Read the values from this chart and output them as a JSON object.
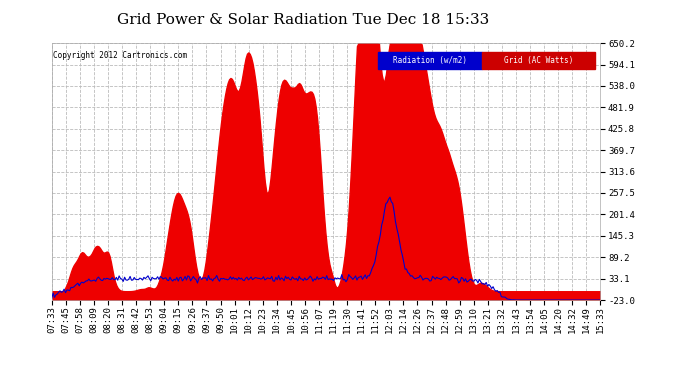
{
  "title": "Grid Power & Solar Radiation Tue Dec 18 15:33",
  "copyright": "Copyright 2012 Cartronics.com",
  "yticks": [
    650.2,
    594.1,
    538.0,
    481.9,
    425.8,
    369.7,
    313.6,
    257.5,
    201.4,
    145.3,
    89.2,
    33.1,
    -23.0
  ],
  "ymin": -23.0,
  "ymax": 650.2,
  "xtick_labels": [
    "07:33",
    "07:45",
    "07:58",
    "08:09",
    "08:20",
    "08:31",
    "08:42",
    "08:53",
    "09:04",
    "09:15",
    "09:26",
    "09:37",
    "09:50",
    "10:01",
    "10:12",
    "10:23",
    "10:34",
    "10:45",
    "10:56",
    "11:07",
    "11:19",
    "11:30",
    "11:41",
    "11:52",
    "12:03",
    "12:14",
    "12:26",
    "12:37",
    "12:48",
    "12:59",
    "13:10",
    "13:21",
    "13:32",
    "13:43",
    "13:54",
    "14:05",
    "14:20",
    "14:32",
    "14:49",
    "15:33"
  ],
  "background_color": "#ffffff",
  "plot_bg": "#ffffff",
  "grid_color": "#bbbbbb",
  "fill_color": "#ee0000",
  "line_color": "#0000cc",
  "title_fontsize": 11,
  "tick_fontsize": 6.5,
  "legend_rad_color": "#0000cc",
  "legend_grid_color": "#cc0000"
}
